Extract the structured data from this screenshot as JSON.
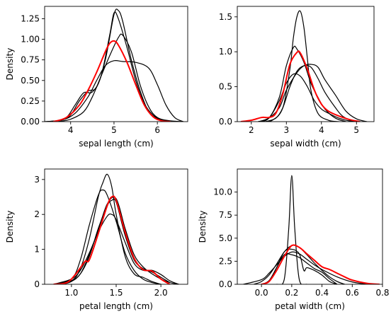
{
  "chart_data": [
    {
      "type": "line",
      "xlabel": "sepal length (cm)",
      "ylabel": "Density",
      "xlim": [
        3.4,
        6.7
      ],
      "ylim": [
        0,
        1.4
      ],
      "xticks": [
        4,
        5,
        6
      ],
      "yticks": [
        0.0,
        0.25,
        0.5,
        0.75,
        1.0,
        1.25
      ],
      "grid": false,
      "series": [
        {
          "color": "#000000",
          "x": [
            3.4,
            3.8,
            4.0,
            4.2,
            4.4,
            4.6,
            4.8,
            5.0,
            5.1,
            5.2,
            5.4,
            5.6,
            5.8,
            6.0,
            6.3,
            6.6
          ],
          "y": [
            0.0,
            0.02,
            0.08,
            0.25,
            0.37,
            0.42,
            0.75,
            1.3,
            1.35,
            1.22,
            0.75,
            0.38,
            0.12,
            0.04,
            0.01,
            0.0
          ]
        },
        {
          "color": "#000000",
          "x": [
            3.6,
            3.9,
            4.1,
            4.3,
            4.5,
            4.7,
            4.9,
            5.0,
            5.1,
            5.3,
            5.5,
            5.7,
            5.9,
            6.1,
            6.3
          ],
          "y": [
            0.0,
            0.05,
            0.2,
            0.35,
            0.36,
            0.55,
            1.05,
            1.32,
            1.25,
            0.9,
            0.5,
            0.22,
            0.08,
            0.02,
            0.0
          ]
        },
        {
          "color": "#000000",
          "x": [
            3.7,
            4.0,
            4.3,
            4.5,
            4.7,
            4.9,
            5.1,
            5.2,
            5.4,
            5.6,
            5.8,
            6.0,
            6.3
          ],
          "y": [
            0.0,
            0.03,
            0.12,
            0.3,
            0.55,
            0.8,
            1.02,
            1.05,
            0.85,
            0.45,
            0.18,
            0.05,
            0.0
          ]
        },
        {
          "color": "#000000",
          "x": [
            3.4,
            3.8,
            4.1,
            4.4,
            4.6,
            4.8,
            5.0,
            5.2,
            5.5,
            5.8,
            6.0,
            6.2,
            6.4,
            6.6
          ],
          "y": [
            0.0,
            0.02,
            0.1,
            0.3,
            0.5,
            0.68,
            0.74,
            0.73,
            0.72,
            0.65,
            0.45,
            0.2,
            0.05,
            0.0
          ]
        },
        {
          "color": "#ff0000",
          "x": [
            3.6,
            3.9,
            4.2,
            4.4,
            4.6,
            4.8,
            4.9,
            5.0,
            5.1,
            5.3,
            5.5,
            5.7,
            5.9,
            6.1,
            6.3
          ],
          "y": [
            0.0,
            0.05,
            0.2,
            0.38,
            0.6,
            0.85,
            0.95,
            0.98,
            0.93,
            0.72,
            0.45,
            0.2,
            0.06,
            0.01,
            0.0
          ]
        }
      ]
    },
    {
      "type": "line",
      "xlabel": "sepal width (cm)",
      "ylabel": "",
      "xlim": [
        1.6,
        5.5
      ],
      "ylim": [
        0,
        1.65
      ],
      "xticks": [
        2,
        3,
        4,
        5
      ],
      "yticks": [
        0.0,
        0.5,
        1.0,
        1.5
      ],
      "grid": false,
      "series": [
        {
          "color": "#000000",
          "x": [
            2.3,
            2.6,
            2.9,
            3.1,
            3.2,
            3.3,
            3.4,
            3.5,
            3.6,
            3.7,
            3.9,
            4.2,
            4.5
          ],
          "y": [
            0.0,
            0.02,
            0.2,
            0.75,
            1.2,
            1.5,
            1.58,
            1.35,
            0.9,
            0.45,
            0.12,
            0.02,
            0.0
          ]
        },
        {
          "color": "#000000",
          "x": [
            2.2,
            2.5,
            2.8,
            3.0,
            3.2,
            3.3,
            3.5,
            3.7,
            3.9,
            4.1,
            4.4,
            4.7
          ],
          "y": [
            0.0,
            0.05,
            0.35,
            0.8,
            1.06,
            1.04,
            0.85,
            0.55,
            0.35,
            0.18,
            0.05,
            0.0
          ]
        },
        {
          "color": "#000000",
          "x": [
            2.2,
            2.5,
            2.8,
            3.0,
            3.3,
            3.5,
            3.7,
            3.9,
            4.1,
            4.4,
            4.7,
            5.0,
            5.3
          ],
          "y": [
            0.0,
            0.05,
            0.2,
            0.45,
            0.7,
            0.8,
            0.82,
            0.78,
            0.6,
            0.38,
            0.15,
            0.04,
            0.0
          ]
        },
        {
          "color": "#000000",
          "x": [
            2.2,
            2.5,
            2.8,
            3.0,
            3.2,
            3.4,
            3.6,
            3.8,
            4.0,
            4.2,
            4.5,
            4.8,
            5.1
          ],
          "y": [
            0.0,
            0.05,
            0.3,
            0.55,
            0.68,
            0.65,
            0.5,
            0.3,
            0.18,
            0.12,
            0.05,
            0.01,
            0.0
          ]
        },
        {
          "color": "#000000",
          "x": [
            2.4,
            2.7,
            2.9,
            3.1,
            3.3,
            3.5,
            3.7,
            3.9,
            4.1,
            4.4,
            4.6,
            4.9
          ],
          "y": [
            0.0,
            0.05,
            0.2,
            0.5,
            0.72,
            0.8,
            0.78,
            0.62,
            0.42,
            0.2,
            0.08,
            0.0
          ]
        },
        {
          "color": "#ff0000",
          "x": [
            1.7,
            2.0,
            2.3,
            2.5,
            2.7,
            2.9,
            3.1,
            3.3,
            3.4,
            3.6,
            3.8,
            4.0,
            4.2,
            4.5,
            4.8,
            5.1
          ],
          "y": [
            0.0,
            0.02,
            0.06,
            0.06,
            0.12,
            0.4,
            0.82,
            0.99,
            0.98,
            0.75,
            0.45,
            0.25,
            0.15,
            0.08,
            0.03,
            0.0
          ]
        }
      ]
    },
    {
      "type": "line",
      "xlabel": "petal length (cm)",
      "ylabel": "Density",
      "xlim": [
        0.7,
        2.3
      ],
      "ylim": [
        0,
        3.3
      ],
      "xticks": [
        1.0,
        1.5,
        2.0
      ],
      "yticks": [
        0,
        1,
        2,
        3
      ],
      "grid": false,
      "series": [
        {
          "color": "#000000",
          "x": [
            0.8,
            1.0,
            1.1,
            1.2,
            1.3,
            1.35,
            1.4,
            1.45,
            1.5,
            1.6,
            1.7,
            1.8,
            1.9,
            2.0
          ],
          "y": [
            0.0,
            0.1,
            0.45,
            1.3,
            2.5,
            2.9,
            3.15,
            2.8,
            2.0,
            0.8,
            0.3,
            0.2,
            0.08,
            0.0
          ]
        },
        {
          "color": "#000000",
          "x": [
            0.8,
            1.0,
            1.1,
            1.2,
            1.3,
            1.35,
            1.4,
            1.5,
            1.6,
            1.7,
            1.8,
            1.9,
            2.0
          ],
          "y": [
            0.0,
            0.15,
            0.7,
            1.7,
            2.55,
            2.7,
            2.55,
            1.8,
            0.9,
            0.4,
            0.15,
            0.05,
            0.0
          ]
        },
        {
          "color": "#000000",
          "x": [
            0.85,
            1.0,
            1.1,
            1.2,
            1.3,
            1.4,
            1.45,
            1.5,
            1.6,
            1.7,
            1.8,
            1.9,
            2.0,
            2.1
          ],
          "y": [
            0.0,
            0.1,
            0.3,
            0.8,
            1.6,
            2.25,
            2.4,
            2.35,
            1.4,
            0.7,
            0.45,
            0.35,
            0.2,
            0.05
          ]
        },
        {
          "color": "#000000",
          "x": [
            0.8,
            1.0,
            1.1,
            1.2,
            1.3,
            1.4,
            1.45,
            1.5,
            1.6,
            1.7,
            1.8,
            1.9,
            2.0,
            2.1,
            2.2
          ],
          "y": [
            0.0,
            0.15,
            0.4,
            0.9,
            1.5,
            1.95,
            2.0,
            1.85,
            1.2,
            0.6,
            0.4,
            0.4,
            0.28,
            0.1,
            0.0
          ]
        },
        {
          "color": "#000000",
          "x": [
            0.9,
            1.0,
            1.1,
            1.2,
            1.3,
            1.4,
            1.5,
            1.6,
            1.7,
            1.8,
            1.9,
            2.0,
            2.1,
            2.2
          ],
          "y": [
            0.0,
            0.08,
            0.3,
            0.85,
            1.55,
            2.3,
            2.45,
            1.6,
            0.85,
            0.5,
            0.3,
            0.15,
            0.05,
            0.0
          ]
        },
        {
          "color": "#ff0000",
          "x": [
            0.8,
            0.95,
            1.05,
            1.15,
            1.2,
            1.3,
            1.4,
            1.45,
            1.5,
            1.6,
            1.7,
            1.8,
            1.9,
            2.0,
            2.1
          ],
          "y": [
            0.0,
            0.05,
            0.3,
            0.65,
            0.7,
            1.45,
            2.25,
            2.5,
            2.4,
            1.5,
            0.75,
            0.42,
            0.38,
            0.15,
            0.0
          ]
        }
      ]
    },
    {
      "type": "line",
      "xlabel": "petal width (cm)",
      "ylabel": "Density",
      "xlim": [
        -0.16,
        0.8
      ],
      "ylim": [
        0,
        12.5
      ],
      "xticks": [
        0.0,
        0.2,
        0.4,
        0.6,
        0.8
      ],
      "yticks": [
        0.0,
        2.5,
        5.0,
        7.5,
        10.0
      ],
      "grid": false,
      "series": [
        {
          "color": "#000000",
          "x": [
            0.1,
            0.15,
            0.18,
            0.2,
            0.22,
            0.25,
            0.3
          ],
          "y": [
            0.0,
            0.5,
            6.0,
            11.8,
            6.0,
            0.5,
            0.0
          ]
        },
        {
          "color": "#000000",
          "x": [
            0.0,
            0.05,
            0.1,
            0.15,
            0.2,
            0.25,
            0.28,
            0.3,
            0.35,
            0.4,
            0.45,
            0.5
          ],
          "y": [
            0.0,
            0.3,
            1.8,
            3.5,
            3.8,
            3.3,
            1.5,
            1.8,
            1.5,
            1.0,
            0.3,
            0.0
          ]
        },
        {
          "color": "#000000",
          "x": [
            -0.12,
            0.0,
            0.05,
            0.1,
            0.15,
            0.2,
            0.25,
            0.3,
            0.35,
            0.4,
            0.5,
            0.6,
            0.7
          ],
          "y": [
            0.0,
            0.5,
            1.2,
            2.1,
            3.0,
            3.5,
            3.3,
            2.7,
            2.1,
            1.6,
            0.8,
            0.25,
            0.0
          ]
        },
        {
          "color": "#000000",
          "x": [
            -0.05,
            0.0,
            0.05,
            0.1,
            0.15,
            0.2,
            0.25,
            0.3,
            0.35,
            0.4,
            0.45,
            0.5,
            0.55
          ],
          "y": [
            0.0,
            0.3,
            1.0,
            2.2,
            3.5,
            4.2,
            4.0,
            3.2,
            2.3,
            1.5,
            0.8,
            0.3,
            0.0
          ]
        },
        {
          "color": "#000000",
          "x": [
            0.0,
            0.05,
            0.1,
            0.15,
            0.2,
            0.25,
            0.3,
            0.35,
            0.4,
            0.45,
            0.5
          ],
          "y": [
            0.0,
            0.4,
            1.8,
            3.2,
            3.2,
            2.9,
            2.3,
            1.7,
            1.3,
            0.6,
            0.0
          ]
        },
        {
          "color": "#ff0000",
          "x": [
            0.0,
            0.05,
            0.1,
            0.15,
            0.2,
            0.25,
            0.3,
            0.35,
            0.4,
            0.45,
            0.5,
            0.55,
            0.6,
            0.7,
            0.78
          ],
          "y": [
            0.0,
            0.3,
            1.5,
            3.0,
            4.2,
            4.0,
            3.3,
            2.6,
            1.9,
            1.6,
            1.2,
            0.8,
            0.45,
            0.1,
            0.0
          ]
        }
      ]
    }
  ]
}
